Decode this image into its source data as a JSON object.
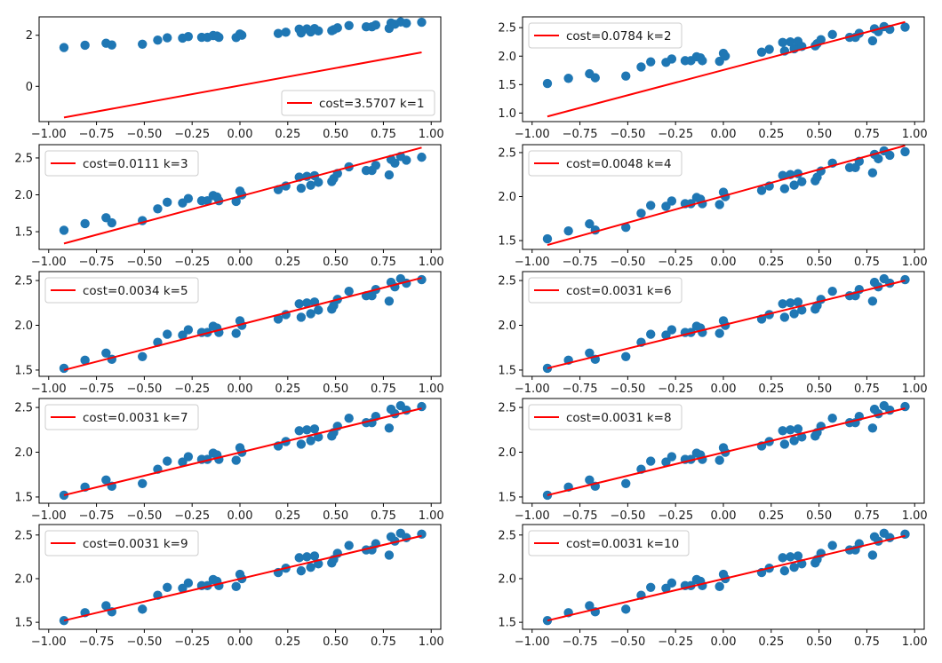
{
  "chart_data": {
    "type": "scatter",
    "title": "",
    "layout": "5 rows x 2 columns of subplots",
    "colors": {
      "points": "#1f77b4",
      "fit_line": "#ff0000"
    },
    "points": {
      "x": [
        -0.92,
        -0.81,
        -0.7,
        -0.67,
        -0.51,
        -0.43,
        -0.38,
        -0.3,
        -0.27,
        -0.2,
        -0.17,
        -0.14,
        -0.12,
        -0.11,
        -0.02,
        0.0,
        0.01,
        0.2,
        0.24,
        0.31,
        0.32,
        0.35,
        0.37,
        0.39,
        0.41,
        0.48,
        0.49,
        0.51,
        0.57,
        0.66,
        0.69,
        0.71,
        0.78,
        0.79,
        0.81,
        0.84,
        0.87,
        0.95
      ],
      "y": [
        1.52,
        1.61,
        1.69,
        1.62,
        1.65,
        1.81,
        1.9,
        1.89,
        1.95,
        1.92,
        1.92,
        1.99,
        1.97,
        1.92,
        1.91,
        2.05,
        2.0,
        2.07,
        2.12,
        2.24,
        2.09,
        2.25,
        2.13,
        2.26,
        2.17,
        2.18,
        2.22,
        2.29,
        2.38,
        2.33,
        2.33,
        2.4,
        2.27,
        2.48,
        2.43,
        2.52,
        2.47,
        2.51
      ]
    },
    "subplots": [
      {
        "k": 1,
        "legend": "cost=3.5707 k=1",
        "legend_position": "lower-right",
        "fit_line": {
          "x": [
            -0.92,
            0.95
          ],
          "y": [
            -1.22,
            1.33
          ]
        },
        "xlim": [
          -1.05,
          1.05
        ],
        "ylim": [
          -1.38,
          2.72
        ],
        "xticks": [
          "-1.00",
          "-0.75",
          "-0.50",
          "-0.25",
          "0.00",
          "0.25",
          "0.50",
          "0.75",
          "1.00"
        ],
        "yticks": [
          {
            "v": 0,
            "label": "0"
          },
          {
            "v": 2,
            "label": "2"
          }
        ]
      },
      {
        "k": 2,
        "legend": "cost=0.0784 k=2",
        "legend_position": "upper-left",
        "fit_line": {
          "x": [
            -0.92,
            0.95
          ],
          "y": [
            0.94,
            2.6
          ]
        },
        "xlim": [
          -1.05,
          1.05
        ],
        "ylim": [
          0.85,
          2.69
        ],
        "xticks": [
          "-1.00",
          "-0.75",
          "-0.50",
          "-0.25",
          "0.00",
          "0.25",
          "0.50",
          "0.75",
          "1.00"
        ],
        "yticks": [
          {
            "v": 1.0,
            "label": "1.0"
          },
          {
            "v": 1.5,
            "label": "1.5"
          },
          {
            "v": 2.0,
            "label": "2.0"
          },
          {
            "v": 2.5,
            "label": "2.5"
          }
        ]
      },
      {
        "k": 3,
        "legend": "cost=0.0111 k=3",
        "legend_position": "upper-left",
        "fit_line": {
          "x": [
            -0.92,
            0.95
          ],
          "y": [
            1.34,
            2.64
          ]
        },
        "xlim": [
          -1.05,
          1.05
        ],
        "ylim": [
          1.26,
          2.68
        ],
        "xticks": [
          "-1.00",
          "-0.75",
          "-0.50",
          "-0.25",
          "0.00",
          "0.25",
          "0.50",
          "0.75",
          "1.00"
        ],
        "yticks": [
          {
            "v": 1.5,
            "label": "1.5"
          },
          {
            "v": 2.0,
            "label": "2.0"
          },
          {
            "v": 2.5,
            "label": "2.5"
          }
        ]
      },
      {
        "k": 4,
        "legend": "cost=0.0048 k=4",
        "legend_position": "upper-left",
        "fit_line": {
          "x": [
            -0.92,
            0.95
          ],
          "y": [
            1.45,
            2.58
          ]
        },
        "xlim": [
          -1.05,
          1.05
        ],
        "ylim": [
          1.4,
          2.59
        ],
        "xticks": [
          "-1.00",
          "-0.75",
          "-0.50",
          "-0.25",
          "0.00",
          "0.25",
          "0.50",
          "0.75",
          "1.00"
        ],
        "yticks": [
          {
            "v": 1.5,
            "label": "1.5"
          },
          {
            "v": 2.0,
            "label": "2.0"
          },
          {
            "v": 2.5,
            "label": "2.5"
          }
        ]
      },
      {
        "k": 5,
        "legend": "cost=0.0034 k=5",
        "legend_position": "upper-left",
        "fit_line": {
          "x": [
            -0.92,
            0.95
          ],
          "y": [
            1.5,
            2.53
          ]
        },
        "xlim": [
          -1.05,
          1.05
        ],
        "ylim": [
          1.43,
          2.6
        ],
        "xticks": [
          "-1.00",
          "-0.75",
          "-0.50",
          "-0.25",
          "0.00",
          "0.25",
          "0.50",
          "0.75",
          "1.00"
        ],
        "yticks": [
          {
            "v": 1.5,
            "label": "1.5"
          },
          {
            "v": 2.0,
            "label": "2.0"
          },
          {
            "v": 2.5,
            "label": "2.5"
          }
        ]
      },
      {
        "k": 6,
        "legend": "cost=0.0031 k=6",
        "legend_position": "upper-left",
        "fit_line": {
          "x": [
            -0.92,
            0.95
          ],
          "y": [
            1.52,
            2.5
          ]
        },
        "xlim": [
          -1.05,
          1.05
        ],
        "ylim": [
          1.43,
          2.6
        ],
        "xticks": [
          "-1.00",
          "-0.75",
          "-0.50",
          "-0.25",
          "0.00",
          "0.25",
          "0.50",
          "0.75",
          "1.00"
        ],
        "yticks": [
          {
            "v": 1.5,
            "label": "1.5"
          },
          {
            "v": 2.0,
            "label": "2.0"
          },
          {
            "v": 2.5,
            "label": "2.5"
          }
        ]
      },
      {
        "k": 7,
        "legend": "cost=0.0031 k=7",
        "legend_position": "upper-left",
        "fit_line": {
          "x": [
            -0.92,
            0.95
          ],
          "y": [
            1.52,
            2.49
          ]
        },
        "xlim": [
          -1.05,
          1.05
        ],
        "ylim": [
          1.43,
          2.6
        ],
        "xticks": [
          "-1.00",
          "-0.75",
          "-0.50",
          "-0.25",
          "0.00",
          "0.25",
          "0.50",
          "0.75",
          "1.00"
        ],
        "yticks": [
          {
            "v": 1.5,
            "label": "1.5"
          },
          {
            "v": 2.0,
            "label": "2.0"
          },
          {
            "v": 2.5,
            "label": "2.5"
          }
        ]
      },
      {
        "k": 8,
        "legend": "cost=0.0031 k=8",
        "legend_position": "upper-left",
        "fit_line": {
          "x": [
            -0.92,
            0.95
          ],
          "y": [
            1.52,
            2.49
          ]
        },
        "xlim": [
          -1.05,
          1.05
        ],
        "ylim": [
          1.43,
          2.6
        ],
        "xticks": [
          "-1.00",
          "-0.75",
          "-0.50",
          "-0.25",
          "0.00",
          "0.25",
          "0.50",
          "0.75",
          "1.00"
        ],
        "yticks": [
          {
            "v": 1.5,
            "label": "1.5"
          },
          {
            "v": 2.0,
            "label": "2.0"
          },
          {
            "v": 2.5,
            "label": "2.5"
          }
        ]
      },
      {
        "k": 9,
        "legend": "cost=0.0031 k=9",
        "legend_position": "upper-left",
        "fit_line": {
          "x": [
            -0.92,
            0.95
          ],
          "y": [
            1.52,
            2.49
          ]
        },
        "xlim": [
          -1.05,
          1.05
        ],
        "ylim": [
          1.42,
          2.62
        ],
        "xticks": [
          "-1.00",
          "-0.75",
          "-0.50",
          "-0.25",
          "0.00",
          "0.25",
          "0.50",
          "0.75",
          "1.00"
        ],
        "yticks": [
          {
            "v": 1.5,
            "label": "1.5"
          },
          {
            "v": 2.0,
            "label": "2.0"
          },
          {
            "v": 2.5,
            "label": "2.5"
          }
        ]
      },
      {
        "k": 10,
        "legend": "cost=0.0031 k=10",
        "legend_position": "upper-left",
        "fit_line": {
          "x": [
            -0.92,
            0.95
          ],
          "y": [
            1.52,
            2.49
          ]
        },
        "xlim": [
          -1.05,
          1.05
        ],
        "ylim": [
          1.42,
          2.62
        ],
        "xticks": [
          "-1.00",
          "-0.75",
          "-0.50",
          "-0.25",
          "0.00",
          "0.25",
          "0.50",
          "0.75",
          "1.00"
        ],
        "yticks": [
          {
            "v": 1.5,
            "label": "1.5"
          },
          {
            "v": 2.0,
            "label": "2.0"
          },
          {
            "v": 2.5,
            "label": "2.5"
          }
        ]
      }
    ],
    "xlabel": "",
    "ylabel": "",
    "grid": false
  }
}
